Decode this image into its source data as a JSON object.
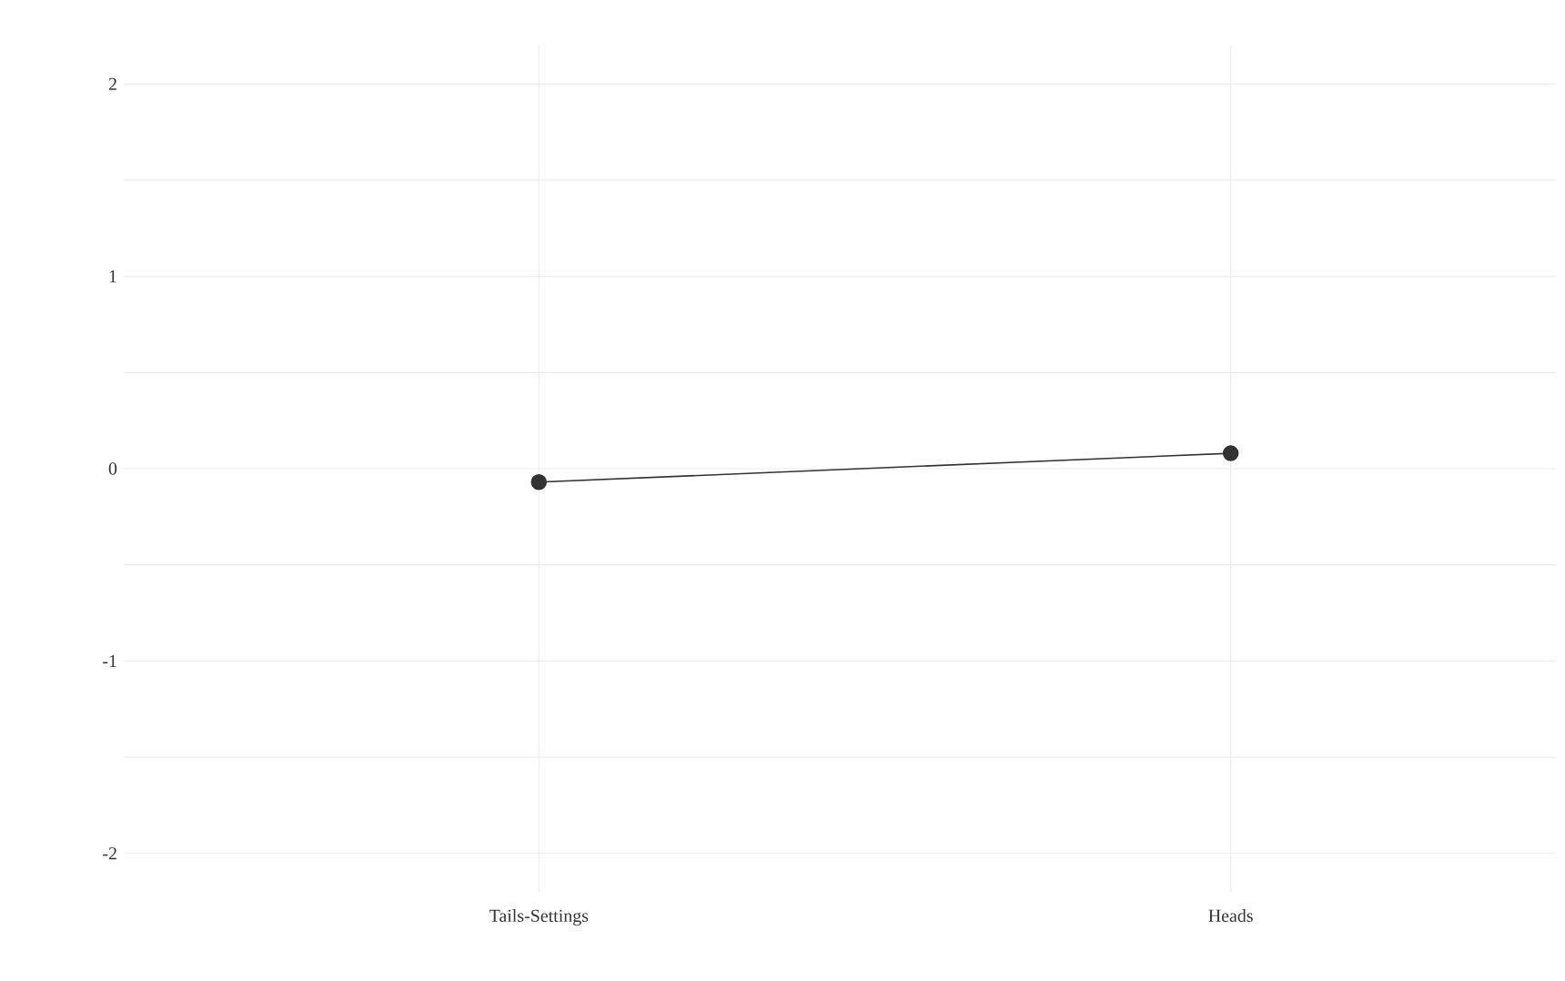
{
  "chart_data": {
    "type": "line",
    "categories": [
      "Tails-Settings",
      "Heads"
    ],
    "series": [
      {
        "color": "#333333",
        "values": [
          -0.07,
          0.08
        ]
      }
    ],
    "ylim": [
      -2.2,
      2.2
    ],
    "yticks": [
      -2,
      {
        "value": -1.5,
        "label": null
      },
      -1,
      {
        "value": -0.5,
        "label": null
      },
      0,
      {
        "value": 0.5,
        "label": null
      },
      1,
      {
        "value": 1.5,
        "label": null
      },
      2
    ],
    "grid": true,
    "marker": "circle",
    "line_style": "solid"
  }
}
